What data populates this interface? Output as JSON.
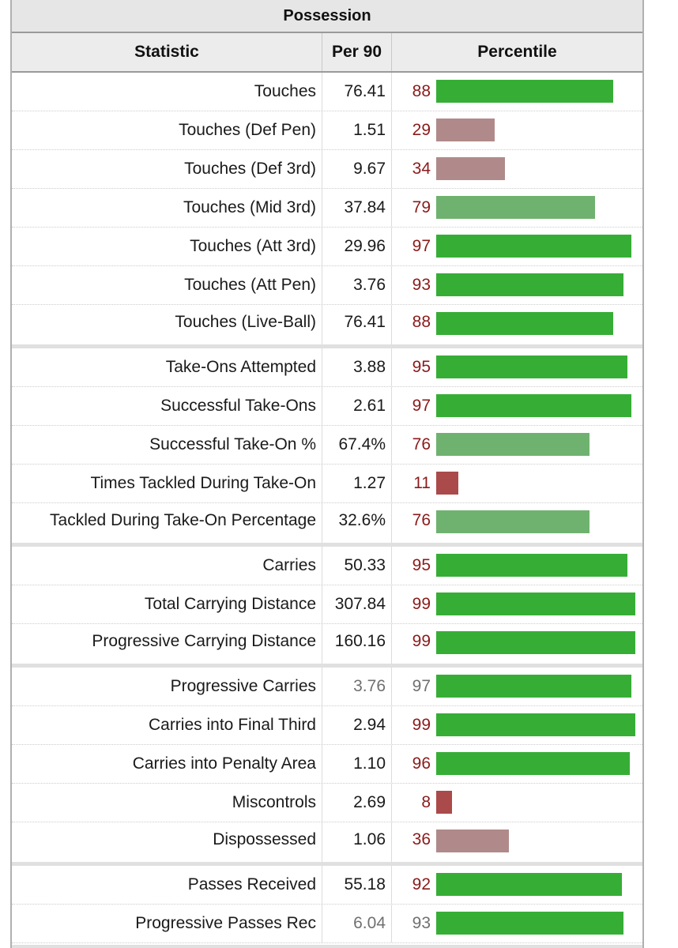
{
  "title": "Possession",
  "headers": {
    "statistic": "Statistic",
    "per90": "Per 90",
    "percentile": "Percentile"
  },
  "chart_data": {
    "type": "table",
    "title": "Possession",
    "columns": [
      "Statistic",
      "Per 90",
      "Percentile"
    ],
    "percentile_range": [
      0,
      100
    ],
    "rows": [
      {
        "stat": "Touches",
        "per90": "76.41",
        "pct": 88,
        "group": 1
      },
      {
        "stat": "Touches (Def Pen)",
        "per90": "1.51",
        "pct": 29,
        "group": 1
      },
      {
        "stat": "Touches (Def 3rd)",
        "per90": "9.67",
        "pct": 34,
        "group": 1
      },
      {
        "stat": "Touches (Mid 3rd)",
        "per90": "37.84",
        "pct": 79,
        "group": 1
      },
      {
        "stat": "Touches (Att 3rd)",
        "per90": "29.96",
        "pct": 97,
        "group": 1
      },
      {
        "stat": "Touches (Att Pen)",
        "per90": "3.76",
        "pct": 93,
        "group": 1
      },
      {
        "stat": "Touches (Live-Ball)",
        "per90": "76.41",
        "pct": 88,
        "group": 1
      },
      {
        "stat": "Take-Ons Attempted",
        "per90": "3.88",
        "pct": 95,
        "group": 2
      },
      {
        "stat": "Successful Take-Ons",
        "per90": "2.61",
        "pct": 97,
        "group": 2
      },
      {
        "stat": "Successful Take-On %",
        "per90": "67.4%",
        "pct": 76,
        "group": 2
      },
      {
        "stat": "Times Tackled During Take-On",
        "per90": "1.27",
        "pct": 11,
        "group": 2
      },
      {
        "stat": "Tackled During Take-On Percentage",
        "per90": "32.6%",
        "pct": 76,
        "group": 2
      },
      {
        "stat": "Carries",
        "per90": "50.33",
        "pct": 95,
        "group": 3
      },
      {
        "stat": "Total Carrying Distance",
        "per90": "307.84",
        "pct": 99,
        "group": 3
      },
      {
        "stat": "Progressive Carrying Distance",
        "per90": "160.16",
        "pct": 99,
        "group": 3
      },
      {
        "stat": "Progressive Carries",
        "per90": "3.76",
        "pct": 97,
        "group": 4,
        "muted": true
      },
      {
        "stat": "Carries into Final Third",
        "per90": "2.94",
        "pct": 99,
        "group": 4
      },
      {
        "stat": "Carries into Penalty Area",
        "per90": "1.10",
        "pct": 96,
        "group": 4
      },
      {
        "stat": "Miscontrols",
        "per90": "2.69",
        "pct": 8,
        "group": 4
      },
      {
        "stat": "Dispossessed",
        "per90": "1.06",
        "pct": 36,
        "group": 4
      },
      {
        "stat": "Passes Received",
        "per90": "55.18",
        "pct": 92,
        "group": 5
      },
      {
        "stat": "Progressive Passes Rec",
        "per90": "6.04",
        "pct": 93,
        "group": 5,
        "muted": true
      }
    ]
  },
  "colors": {
    "pct_text": "#8b1a1a",
    "muted_text": "#707070",
    "high": "#36ae36",
    "mid_high": "#6fb26f",
    "mid_low": "#b08a8a",
    "low": "#ab4a4a"
  }
}
